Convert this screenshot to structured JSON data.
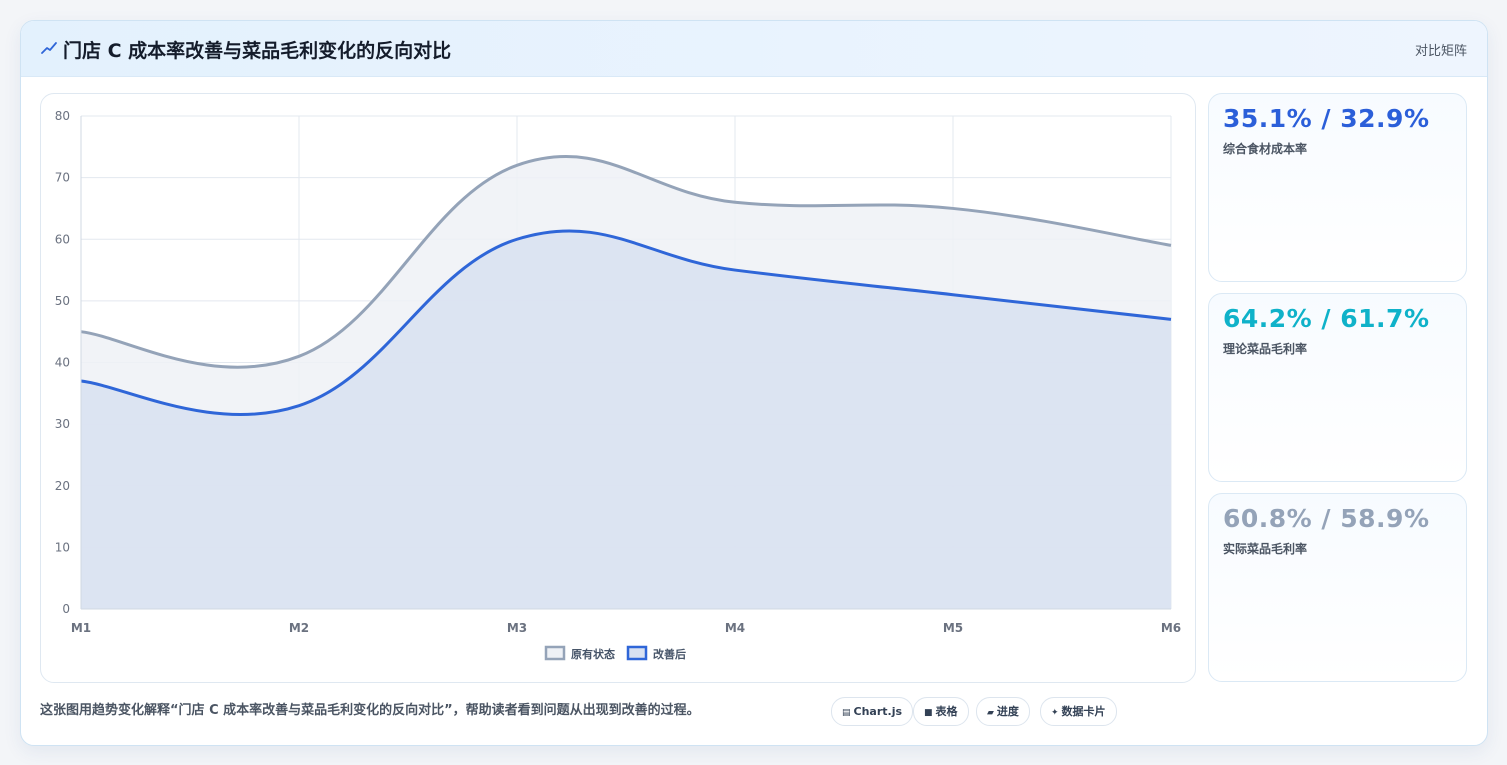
{
  "header": {
    "title": "门店 C 成本率改善与菜品毛利变化的反向对比",
    "right_label": "对比矩阵",
    "icon": "trend-icon"
  },
  "stats": [
    {
      "value": "35.1% / 32.9%",
      "label": "综合食材成本率",
      "color": "#2b5fd9"
    },
    {
      "value": "64.2% / 61.7%",
      "label": "理论菜品毛利率",
      "color": "#0fb2c9"
    },
    {
      "value": "60.8% / 58.9%",
      "label": "实际菜品毛利率",
      "color": "#94a3b8"
    }
  ],
  "footer": {
    "description": "这张图用趋势变化解释“门店 C 成本率改善与菜品毛利变化的反向对比”，帮助读者看到问题从出现到改善的过程。",
    "chips": [
      {
        "icon": "chart-icon",
        "glyph": "▤",
        "label": "Chart.js"
      },
      {
        "icon": "table-icon",
        "glyph": "■",
        "label": "表格"
      },
      {
        "icon": "progress-icon",
        "glyph": "▰",
        "label": "进度"
      },
      {
        "icon": "data-card-icon",
        "glyph": "✦",
        "label": "数据卡片"
      }
    ]
  },
  "chart_data": {
    "type": "area",
    "categories": [
      "M1",
      "M2",
      "M3",
      "M4",
      "M5",
      "M6"
    ],
    "series": [
      {
        "name": "原有状态",
        "values": [
          45,
          41,
          72,
          66,
          65,
          59
        ],
        "color": "#94a3b8",
        "fill": "#eef1f6"
      },
      {
        "name": "改善后",
        "values": [
          37,
          33,
          60,
          55,
          51,
          47
        ],
        "color": "#2f66d8",
        "fill": "#d8e1f1"
      }
    ],
    "ylim": [
      0,
      80
    ],
    "yticks": [
      0,
      10,
      20,
      30,
      40,
      50,
      60,
      70,
      80
    ],
    "grid": true,
    "legend": "bottom-center"
  }
}
